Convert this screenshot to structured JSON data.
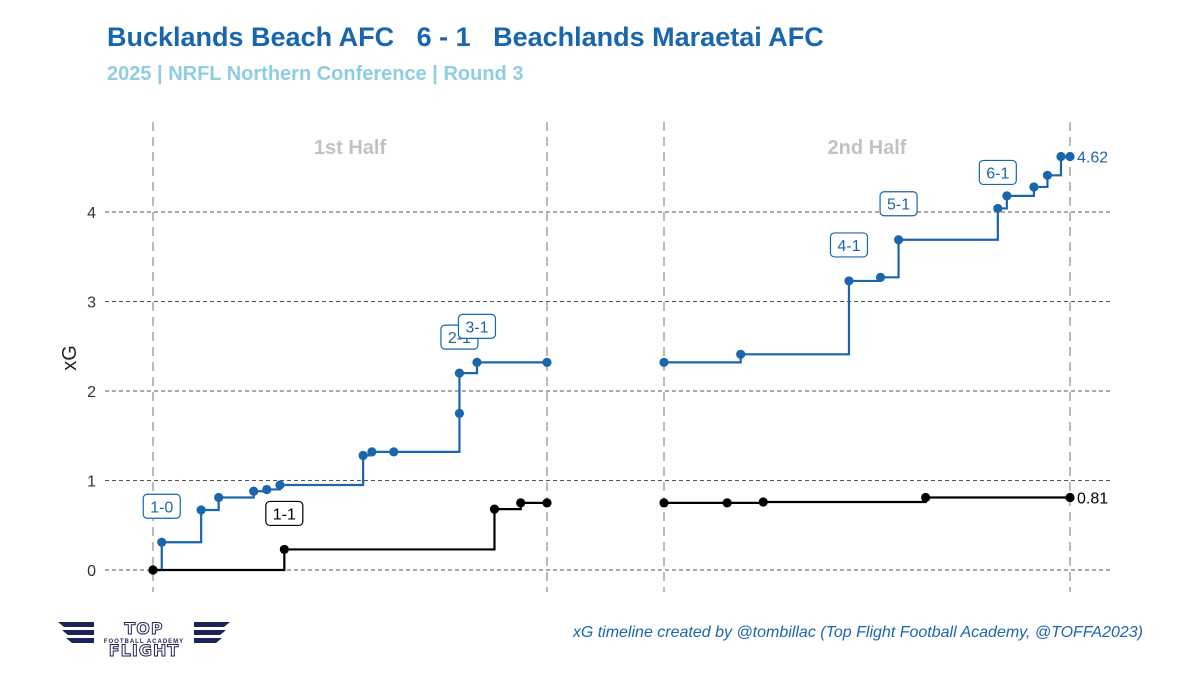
{
  "header": {
    "title": "Bucklands Beach AFC   6 - 1   Beachlands Maraetai AFC",
    "subtitle": "2025 | NRFL Northern Conference | Round 3"
  },
  "footer": {
    "caption": "xG timeline created by @tombillac (Top Flight Football Academy, @TOFFA2023)",
    "logo_text": "TOP FLIGHT",
    "logo_subtext": "FOOTBALL ACADEMY"
  },
  "colors": {
    "home": "#1a66ad",
    "away": "#000000",
    "grid": "#555555",
    "half_line": "#bbbbbb",
    "half_label": "#c2c2c2"
  },
  "chart_data": {
    "type": "line",
    "step": true,
    "ylabel": "xG",
    "ylim": [
      -0.1,
      4.95
    ],
    "yticks": [
      0,
      1,
      2,
      3,
      4
    ],
    "panels": [
      {
        "label": "1st Half",
        "xlim": [
          0,
          45
        ]
      },
      {
        "label": "2nd Half",
        "xlim": [
          45,
          90
        ]
      }
    ],
    "grid": "horizontal dashed",
    "series": [
      {
        "team": "Bucklands Beach AFC",
        "final_label": "4.62",
        "first_half": [
          [
            0,
            0
          ],
          [
            1,
            0.31
          ],
          [
            5.5,
            0.67
          ],
          [
            7.5,
            0.81
          ],
          [
            11.5,
            0.88
          ],
          [
            13,
            0.9
          ],
          [
            14.5,
            0.95
          ],
          [
            24,
            1.28
          ],
          [
            25,
            1.32
          ],
          [
            27.5,
            1.32
          ],
          [
            35,
            1.75
          ],
          [
            35,
            2.2
          ],
          [
            37,
            2.32
          ],
          [
            45,
            2.32
          ]
        ],
        "second_half": [
          [
            45,
            2.32
          ],
          [
            53.5,
            2.41
          ],
          [
            65.5,
            3.23
          ],
          [
            69,
            3.27
          ],
          [
            71,
            3.69
          ],
          [
            82,
            4.04
          ],
          [
            83,
            4.18
          ],
          [
            86,
            4.28
          ],
          [
            87.5,
            4.41
          ],
          [
            89,
            4.62
          ],
          [
            90,
            4.62
          ]
        ],
        "goal_labels": [
          {
            "minute": 1,
            "xg": 0.31,
            "score": "1-0"
          },
          {
            "minute": 35,
            "xg": 2.2,
            "score": "2-1"
          },
          {
            "minute": 37,
            "xg": 2.32,
            "score": "3-1"
          },
          {
            "minute": 65.5,
            "xg": 3.23,
            "score": "4-1"
          },
          {
            "minute": 71,
            "xg": 3.69,
            "score": "5-1"
          },
          {
            "minute": 82,
            "xg": 4.04,
            "score": "6-1"
          }
        ]
      },
      {
        "team": "Beachlands Maraetai AFC",
        "final_label": "0.81",
        "first_half": [
          [
            0,
            0
          ],
          [
            15,
            0.23
          ],
          [
            39,
            0.68
          ],
          [
            42,
            0.75
          ],
          [
            45,
            0.75
          ]
        ],
        "second_half": [
          [
            45,
            0.75
          ],
          [
            52,
            0.75
          ],
          [
            56,
            0.76
          ],
          [
            74,
            0.81
          ],
          [
            90,
            0.81
          ]
        ],
        "goal_labels": [
          {
            "minute": 15,
            "xg": 0.23,
            "score": "1-1"
          }
        ]
      }
    ]
  }
}
